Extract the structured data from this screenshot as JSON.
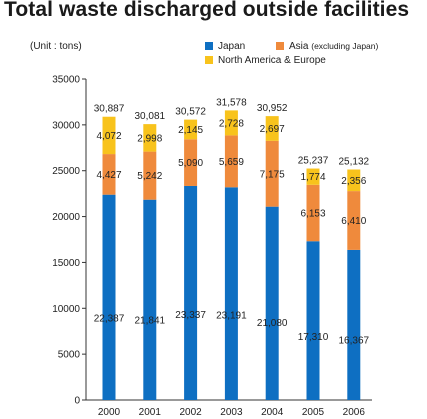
{
  "title": "Total waste discharged outside facilities",
  "unit_label": "(Unit : tons)",
  "colors": {
    "japan": "#0e6fc2",
    "asia": "#ef8a3c",
    "na_eu": "#f8c31c"
  },
  "legend": {
    "japan": "Japan",
    "asia": "Asia",
    "asia_note": "(excluding Japan)",
    "na_eu": "North America & Europe"
  },
  "chart_data": {
    "type": "bar",
    "stacked": true,
    "categories": [
      "2000",
      "2001",
      "2002",
      "2003",
      "2004",
      "2005",
      "2006"
    ],
    "series": [
      {
        "name": "Japan",
        "key": "japan",
        "values": [
          22387,
          21841,
          23337,
          23191,
          21080,
          17310,
          16367
        ],
        "labels": [
          "22,387",
          "21,841",
          "23,337",
          "23,191",
          "21,080",
          "17,310",
          "16,367"
        ]
      },
      {
        "name": "Asia (excluding Japan)",
        "key": "asia",
        "values": [
          4427,
          5242,
          5090,
          5659,
          7175,
          6153,
          6410
        ],
        "labels": [
          "4,427",
          "5,242",
          "5,090",
          "5,659",
          "7,175",
          "6,153",
          "6,410"
        ]
      },
      {
        "name": "North America & Europe",
        "key": "na_eu",
        "values": [
          4072,
          2998,
          2145,
          2728,
          2697,
          1774,
          2356
        ],
        "labels": [
          "4,072",
          "2,998",
          "2,145",
          "2,728",
          "2,697",
          "1,774",
          "2,356"
        ]
      }
    ],
    "totals": [
      30887,
      30081,
      30572,
      31578,
      30952,
      25237,
      25132
    ],
    "total_labels": [
      "30,887",
      "30,081",
      "30,572",
      "31,578",
      "30,952",
      "25,237",
      "25,132"
    ],
    "ylim": [
      0,
      35000
    ],
    "yticks": [
      0,
      5000,
      10000,
      15000,
      20000,
      25000,
      30000,
      35000
    ],
    "grid": false,
    "legend_position": "top-right"
  }
}
